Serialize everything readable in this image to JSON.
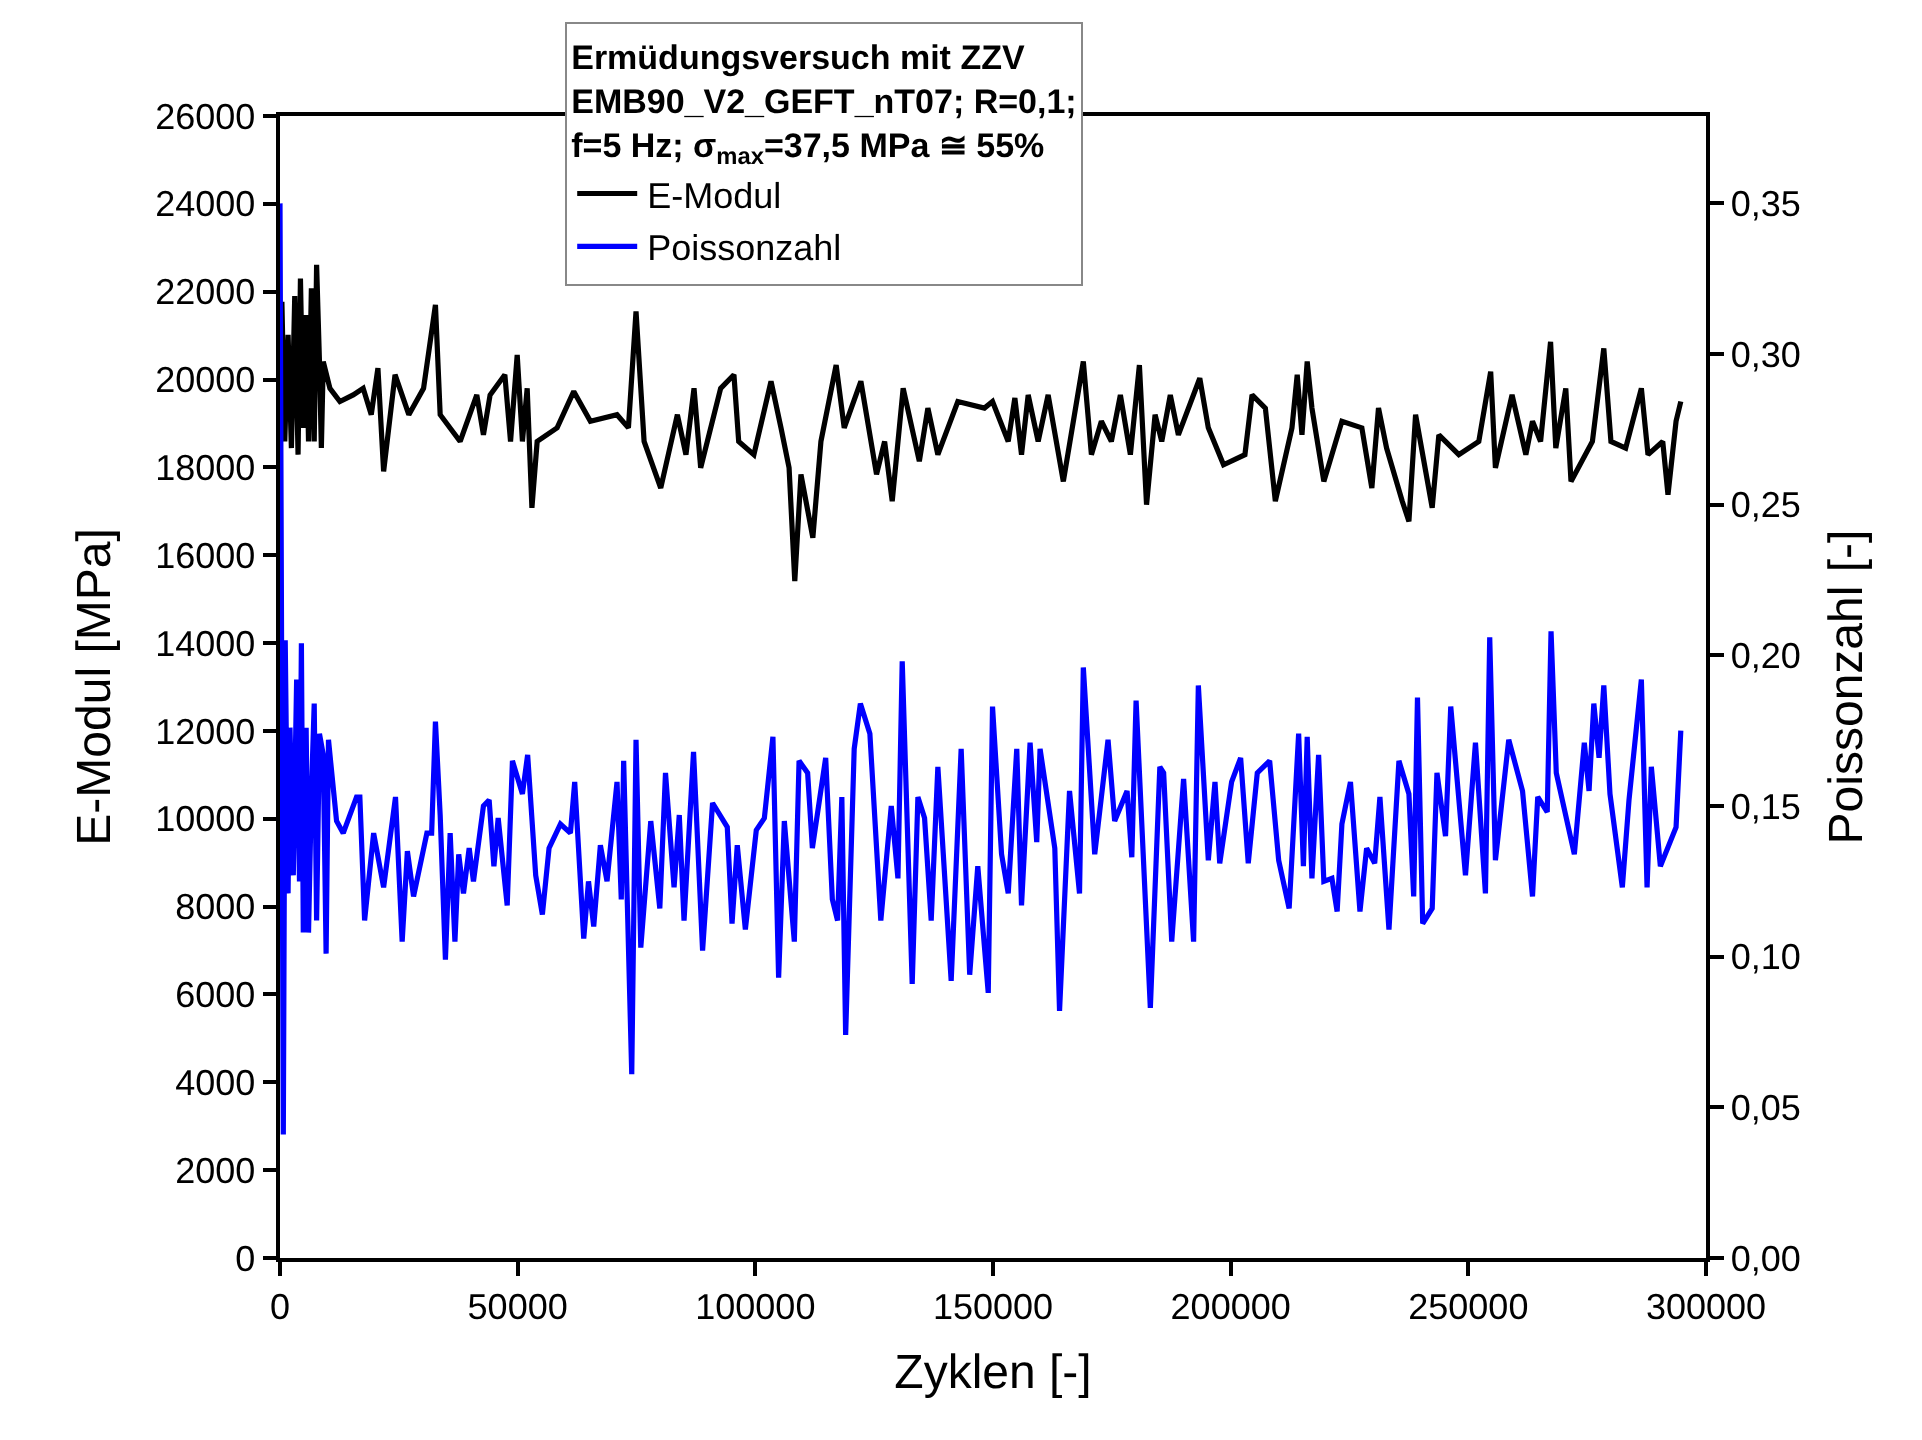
{
  "chart_data": {
    "type": "line",
    "legend_title": "Ermüdungsversuch mit ZZV\nEMB90_V2_GEFT_nT07; R=0,1;\nf=5 Hz; σ$_{max}$=37,5 MPa ≅ 55%",
    "xlabel": "Zyklen [-]",
    "ylabel": "E-Modul [MPa]",
    "y2label": "Poissonzahl [-]",
    "xlim": [
      0,
      300000
    ],
    "xticks": [
      0,
      50000,
      100000,
      150000,
      200000,
      250000,
      300000
    ],
    "ylim": [
      0,
      26000
    ],
    "yticks": [
      0,
      2000,
      4000,
      6000,
      8000,
      10000,
      12000,
      14000,
      16000,
      18000,
      20000,
      22000,
      24000,
      26000
    ],
    "y2lim": [
      0,
      0.379
    ],
    "y2ticks": [
      {
        "value": 0,
        "label": "0,00"
      },
      {
        "value": 0.05,
        "label": "0,05"
      },
      {
        "value": 0.1,
        "label": "0,10"
      },
      {
        "value": 0.15,
        "label": "0,15"
      },
      {
        "value": 0.2,
        "label": "0,20"
      },
      {
        "value": 0.25,
        "label": "0,25"
      },
      {
        "value": 0.3,
        "label": "0,30"
      },
      {
        "value": 0.35,
        "label": "0,35"
      }
    ],
    "legend": "top",
    "marker": "none",
    "line_style": "solid",
    "series": [
      {
        "name": "E-Modul",
        "color": "#000000",
        "x": [
          0,
          400,
          1000,
          1700,
          2400,
          3100,
          3800,
          4300,
          4900,
          5500,
          6000,
          6600,
          7200,
          7700,
          8300,
          8700,
          9100,
          10500,
          12600,
          15400,
          17500,
          19200,
          20600,
          21800,
          24200,
          27100,
          30200,
          32700,
          33700,
          37900,
          41400,
          42800,
          44200,
          47300,
          48500,
          49900,
          51000,
          52000,
          53000,
          54100,
          58300,
          61800,
          65300,
          70900,
          73300,
          74900,
          76600,
          80100,
          83600,
          85400,
          87100,
          88500,
          92700,
          95500,
          96500,
          99700,
          103300,
          105400,
          107100,
          108300,
          109600,
          112100,
          113800,
          117000,
          118700,
          122200,
          125500,
          127200,
          128800,
          131100,
          134500,
          136300,
          138400,
          142600,
          148200,
          149900,
          153200,
          154600,
          156000,
          157400,
          159500,
          161600,
          164800,
          169000,
          170700,
          172800,
          174900,
          176800,
          178900,
          180800,
          182300,
          184100,
          185500,
          187300,
          189000,
          193500,
          195300,
          198500,
          203000,
          204500,
          207300,
          209400,
          212900,
          214000,
          215000,
          216100,
          217100,
          219600,
          223400,
          227600,
          229700,
          231100,
          232800,
          236100,
          237500,
          238900,
          242400,
          243800,
          248000,
          252200,
          254700,
          255700,
          259200,
          262100,
          263500,
          265200,
          267300,
          268400,
          270500,
          271600,
          276100,
          278500,
          280000,
          283100,
          286400,
          287800,
          290900,
          292000,
          293700,
          294700
        ],
        "values": [
          19050,
          21770,
          18590,
          21020,
          18440,
          21900,
          18290,
          22300,
          18900,
          21470,
          18590,
          22080,
          18590,
          22610,
          20410,
          18440,
          20410,
          19800,
          19500,
          19650,
          19800,
          19200,
          20260,
          17910,
          20110,
          19200,
          19800,
          21700,
          19200,
          18590,
          19650,
          18740,
          19650,
          20110,
          18590,
          20560,
          18590,
          19800,
          17080,
          18590,
          18900,
          19730,
          19050,
          19200,
          18900,
          21550,
          18590,
          17530,
          19200,
          18290,
          19800,
          17990,
          19800,
          20110,
          18590,
          18290,
          19960,
          18900,
          17990,
          15410,
          17840,
          16400,
          18590,
          20330,
          18900,
          19960,
          17840,
          18590,
          17230,
          19800,
          18140,
          19350,
          18290,
          19500,
          19350,
          19500,
          18590,
          19580,
          18290,
          19650,
          18590,
          19650,
          17680,
          20410,
          18290,
          19050,
          18590,
          19650,
          18290,
          20330,
          17150,
          19200,
          18590,
          19650,
          18740,
          20030,
          18900,
          18060,
          18290,
          19650,
          19350,
          17230,
          18900,
          20110,
          18740,
          20410,
          19350,
          17680,
          19050,
          18900,
          17530,
          19350,
          18440,
          17230,
          16770,
          19200,
          17080,
          18740,
          18290,
          18590,
          20180,
          17990,
          19650,
          18290,
          19050,
          18590,
          20860,
          18440,
          19800,
          17680,
          18590,
          20710,
          18590,
          18440,
          19800,
          18290,
          18590,
          17380,
          19050,
          19500
        ]
      },
      {
        "name": "Poissonzahl",
        "color": "#0000ff",
        "axis": "y2",
        "x": [
          0,
          700,
          1100,
          1700,
          2100,
          2800,
          3500,
          4100,
          4500,
          4900,
          5500,
          6000,
          6600,
          7200,
          7700,
          8300,
          9100,
          9700,
          10200,
          11900,
          13300,
          16100,
          16800,
          17800,
          19700,
          21800,
          24300,
          25700,
          26800,
          28100,
          30900,
          31900,
          32700,
          33700,
          34800,
          35800,
          36800,
          37600,
          38600,
          39800,
          40700,
          42800,
          44000,
          45000,
          45900,
          47800,
          48900,
          51000,
          52100,
          53800,
          55200,
          56600,
          59000,
          61100,
          62000,
          63900,
          64900,
          66000,
          67400,
          68800,
          70900,
          71800,
          72300,
          74000,
          74900,
          75900,
          78000,
          79900,
          81100,
          82900,
          84000,
          85000,
          87000,
          88900,
          91000,
          94100,
          95100,
          96200,
          97900,
          100200,
          101900,
          103700,
          104900,
          106100,
          108200,
          109200,
          111000,
          112000,
          114800,
          116200,
          117300,
          118200,
          119000,
          120800,
          122100,
          124100,
          126400,
          128600,
          130000,
          130900,
          133000,
          134200,
          135600,
          137000,
          138400,
          141200,
          143300,
          145100,
          146800,
          149000,
          149900,
          151800,
          153200,
          155000,
          156000,
          157800,
          159200,
          159900,
          163000,
          164000,
          166100,
          168200,
          169000,
          171400,
          174200,
          175600,
          178200,
          179200,
          180100,
          183100,
          185100,
          185900,
          187600,
          190100,
          192200,
          193200,
          195300,
          196700,
          197700,
          200200,
          202100,
          203700,
          205600,
          208200,
          210100,
          212300,
          214300,
          215300,
          216100,
          217100,
          218500,
          219600,
          221300,
          222400,
          223400,
          225200,
          227200,
          228600,
          230300,
          231400,
          233300,
          235400,
          237500,
          238500,
          239300,
          240400,
          242400,
          243400,
          245200,
          246300,
          249400,
          251500,
          253600,
          254500,
          255700,
          258500,
          261400,
          263500,
          264600,
          266600,
          267400,
          268500,
          272300,
          274400,
          275400,
          276400,
          277500,
          278500,
          279800,
          282400,
          283800,
          286400,
          287600,
          288500,
          290400,
          293700,
          294700
        ],
        "values": [
          0.35,
          0.041,
          0.205,
          0.121,
          0.176,
          0.127,
          0.192,
          0.125,
          0.204,
          0.108,
          0.176,
          0.108,
          0.154,
          0.184,
          0.112,
          0.174,
          0.167,
          0.101,
          0.172,
          0.145,
          0.141,
          0.153,
          0.153,
          0.112,
          0.141,
          0.123,
          0.153,
          0.105,
          0.135,
          0.12,
          0.141,
          0.141,
          0.178,
          0.147,
          0.099,
          0.141,
          0.105,
          0.134,
          0.121,
          0.136,
          0.125,
          0.15,
          0.152,
          0.13,
          0.146,
          0.117,
          0.165,
          0.154,
          0.167,
          0.127,
          0.114,
          0.136,
          0.144,
          0.141,
          0.158,
          0.106,
          0.125,
          0.11,
          0.137,
          0.125,
          0.158,
          0.119,
          0.165,
          0.061,
          0.172,
          0.103,
          0.145,
          0.116,
          0.161,
          0.123,
          0.147,
          0.112,
          0.168,
          0.102,
          0.151,
          0.143,
          0.111,
          0.137,
          0.109,
          0.142,
          0.146,
          0.173,
          0.093,
          0.145,
          0.105,
          0.165,
          0.161,
          0.136,
          0.166,
          0.119,
          0.112,
          0.153,
          0.074,
          0.169,
          0.184,
          0.174,
          0.112,
          0.15,
          0.126,
          0.198,
          0.091,
          0.153,
          0.146,
          0.112,
          0.163,
          0.092,
          0.169,
          0.094,
          0.13,
          0.088,
          0.183,
          0.134,
          0.121,
          0.169,
          0.117,
          0.171,
          0.138,
          0.169,
          0.136,
          0.082,
          0.155,
          0.121,
          0.196,
          0.134,
          0.172,
          0.145,
          0.155,
          0.133,
          0.185,
          0.083,
          0.163,
          0.161,
          0.105,
          0.159,
          0.105,
          0.19,
          0.132,
          0.158,
          0.131,
          0.158,
          0.166,
          0.131,
          0.161,
          0.165,
          0.132,
          0.116,
          0.174,
          0.13,
          0.173,
          0.126,
          0.167,
          0.125,
          0.126,
          0.115,
          0.144,
          0.158,
          0.115,
          0.136,
          0.131,
          0.153,
          0.109,
          0.165,
          0.154,
          0.12,
          0.186,
          0.111,
          0.116,
          0.161,
          0.14,
          0.183,
          0.127,
          0.171,
          0.121,
          0.206,
          0.132,
          0.172,
          0.155,
          0.12,
          0.153,
          0.148,
          0.208,
          0.161,
          0.134,
          0.171,
          0.155,
          0.184,
          0.166,
          0.19,
          0.154,
          0.123,
          0.152,
          0.192,
          0.123,
          0.163,
          0.13,
          0.143,
          0.175
        ]
      }
    ]
  }
}
